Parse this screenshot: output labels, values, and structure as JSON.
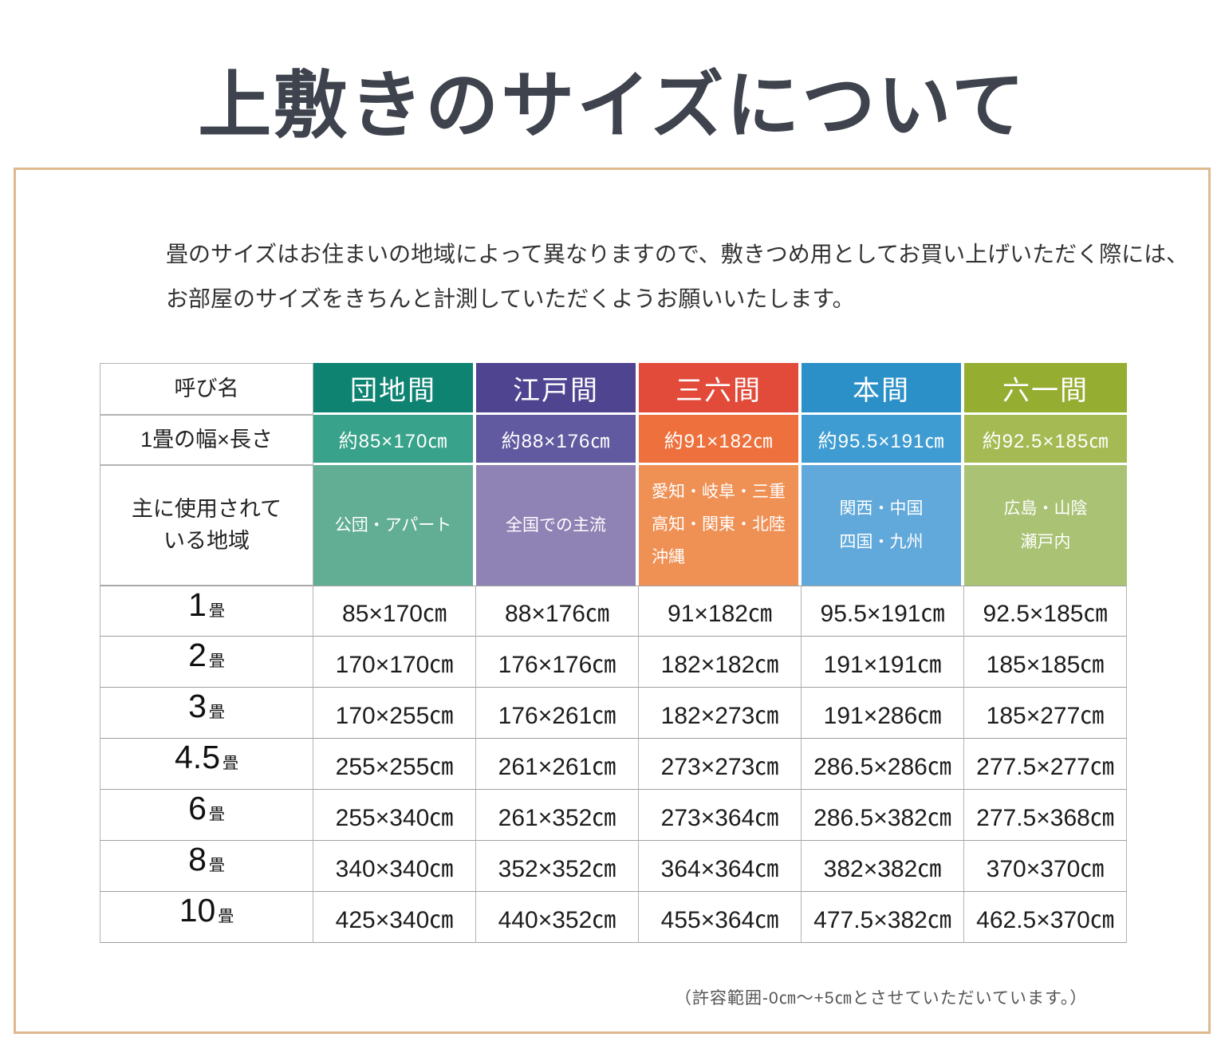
{
  "page": {
    "title": "上敷きのサイズについて",
    "intro_line1": "畳のサイズはお住まいの地域によって異なりますので、敷きつめ用としてお買い上げいただく際には、",
    "intro_line2": "お部屋のサイズをきちんと計測していただくようお願いいたします。",
    "footnote": "（許容範囲-0㎝～+5㎝とさせていただいています。）"
  },
  "colors": {
    "title_text": "#3e434d",
    "frame_border": "#dfb98e"
  },
  "table": {
    "corner_label": "呼び名",
    "size_row_label": "1畳の幅×長さ",
    "region_row_label_line1": "主に使用されて",
    "region_row_label_line2": "いる地域",
    "columns": [
      {
        "name": "団地間",
        "size": "約85×170㎝",
        "regions": [
          "公団・アパート"
        ],
        "color_dark": "#0e8372",
        "color_mid": "#38a28a",
        "color_light": "#62ae94"
      },
      {
        "name": "江戸間",
        "size": "約88×176㎝",
        "regions": [
          "全国での主流"
        ],
        "color_dark": "#4f4490",
        "color_mid": "#615aa0",
        "color_light": "#8f82b4"
      },
      {
        "name": "三六間",
        "size": "約91×182㎝",
        "regions": [
          "愛知・岐阜・三重",
          "高知・関東・北陸",
          "沖縄"
        ],
        "color_dark": "#e24a39",
        "color_mid": "#ee713d",
        "color_light": "#ef9054"
      },
      {
        "name": "本間",
        "size": "約95.5×191㎝",
        "regions": [
          "関西・中国",
          "四国・九州"
        ],
        "color_dark": "#2b90c7",
        "color_mid": "#3f9cd2",
        "color_light": "#61a9da"
      },
      {
        "name": "六一間",
        "size": "約92.5×185㎝",
        "regions": [
          "広島・山陰",
          "瀬戸内"
        ],
        "color_dark": "#95ad31",
        "color_mid": "#a5ba52",
        "color_light": "#a9c274"
      }
    ],
    "rows": [
      {
        "label_num": "1",
        "label_suffix": "畳",
        "values": [
          "85×170㎝",
          "88×176㎝",
          "91×182㎝",
          "95.5×191㎝",
          "92.5×185㎝"
        ]
      },
      {
        "label_num": "2",
        "label_suffix": "畳",
        "values": [
          "170×170㎝",
          "176×176㎝",
          "182×182㎝",
          "191×191㎝",
          "185×185㎝"
        ]
      },
      {
        "label_num": "3",
        "label_suffix": "畳",
        "values": [
          "170×255㎝",
          "176×261㎝",
          "182×273㎝",
          "191×286㎝",
          "185×277㎝"
        ]
      },
      {
        "label_num": "4.5",
        "label_suffix": "畳",
        "values": [
          "255×255㎝",
          "261×261㎝",
          "273×273㎝",
          "286.5×286㎝",
          "277.5×277㎝"
        ]
      },
      {
        "label_num": "6",
        "label_suffix": "畳",
        "values": [
          "255×340㎝",
          "261×352㎝",
          "273×364㎝",
          "286.5×382㎝",
          "277.5×368㎝"
        ]
      },
      {
        "label_num": "8",
        "label_suffix": "畳",
        "values": [
          "340×340㎝",
          "352×352㎝",
          "364×364㎝",
          "382×382㎝",
          "370×370㎝"
        ]
      },
      {
        "label_num": "10",
        "label_suffix": "畳",
        "values": [
          "425×340㎝",
          "440×352㎝",
          "455×364㎝",
          "477.5×382㎝",
          "462.5×370㎝"
        ]
      }
    ]
  }
}
